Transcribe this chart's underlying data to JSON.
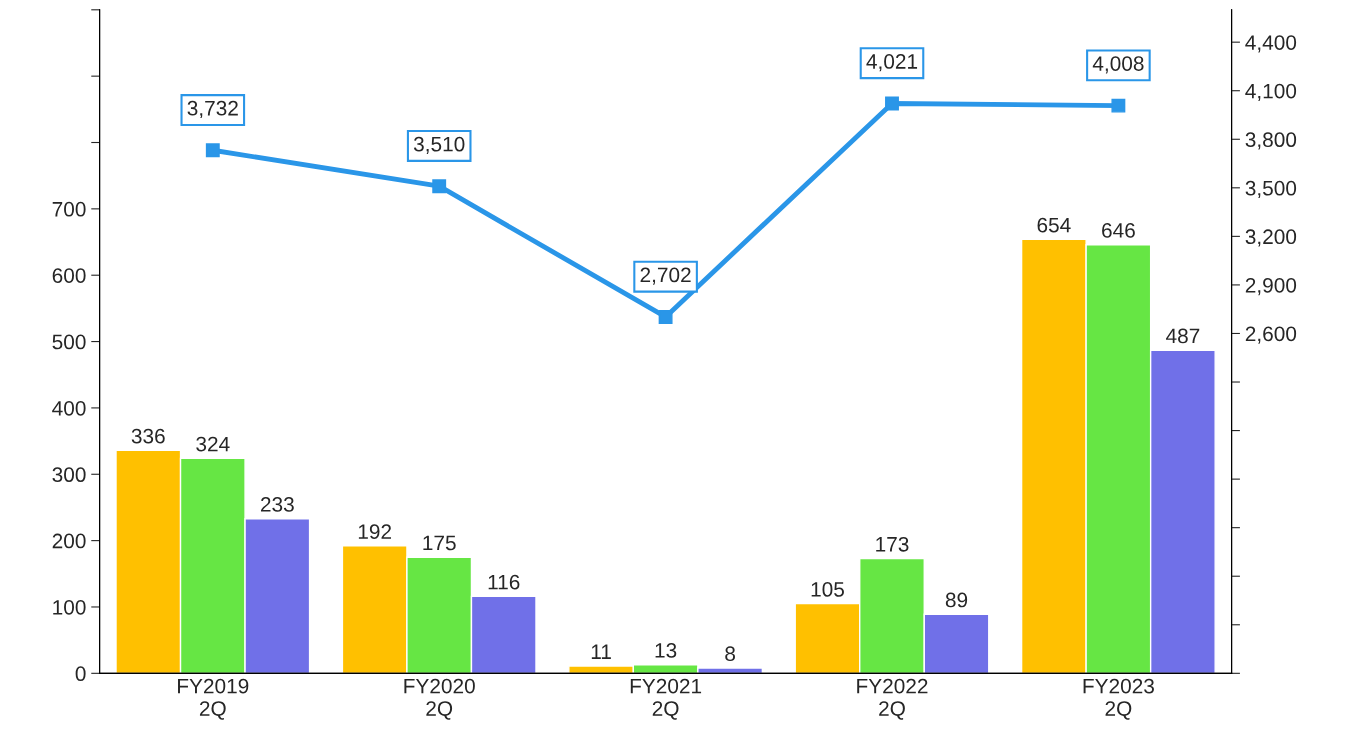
{
  "chart_data": {
    "type": "bar",
    "categories": [
      "FY2019\n2Q",
      "FY2020\n2Q",
      "FY2021\n2Q",
      "FY2022\n2Q",
      "FY2023\n2Q"
    ],
    "series": [
      {
        "color": "#ffc000",
        "values": [
          336,
          192,
          11,
          105,
          654
        ]
      },
      {
        "color": "#66e644",
        "values": [
          324,
          175,
          13,
          173,
          646
        ]
      },
      {
        "color": "#7070e8",
        "values": [
          233,
          116,
          8,
          89,
          487
        ]
      },
      {
        "type": "line",
        "axis": "y2",
        "color": "#2a96e8",
        "marker": "square",
        "values": [
          3732,
          3510,
          2702,
          4021,
          4008
        ],
        "value_labels": [
          "3,732",
          "3,510",
          "2,702",
          "4,021",
          "4,008"
        ]
      }
    ],
    "ylim": [
      0,
      1000
    ],
    "yticks": [
      0,
      100,
      200,
      300,
      400,
      500,
      600,
      700,
      {
        "value": 800,
        "label": null
      },
      {
        "value": 900,
        "label": null
      },
      {
        "value": 1000,
        "label": null
      }
    ],
    "y2lim": [
      500,
      4600
    ],
    "y2ticks": [
      {
        "value": 500,
        "label": null
      },
      {
        "value": 800,
        "label": null
      },
      {
        "value": 1100,
        "label": null
      },
      {
        "value": 1400,
        "label": null
      },
      {
        "value": 1700,
        "label": null
      },
      {
        "value": 2000,
        "label": null
      },
      {
        "value": 2300,
        "label": null
      },
      {
        "value": 2600,
        "label": "2,600"
      },
      {
        "value": 2900,
        "label": "2,900"
      },
      {
        "value": 3200,
        "label": "3,200"
      },
      {
        "value": 3500,
        "label": "3,500"
      },
      {
        "value": 3800,
        "label": "3,800"
      },
      {
        "value": 4100,
        "label": "4,100"
      },
      {
        "value": 4400,
        "label": "4,400"
      }
    ],
    "data_labels": true,
    "grid": false
  }
}
